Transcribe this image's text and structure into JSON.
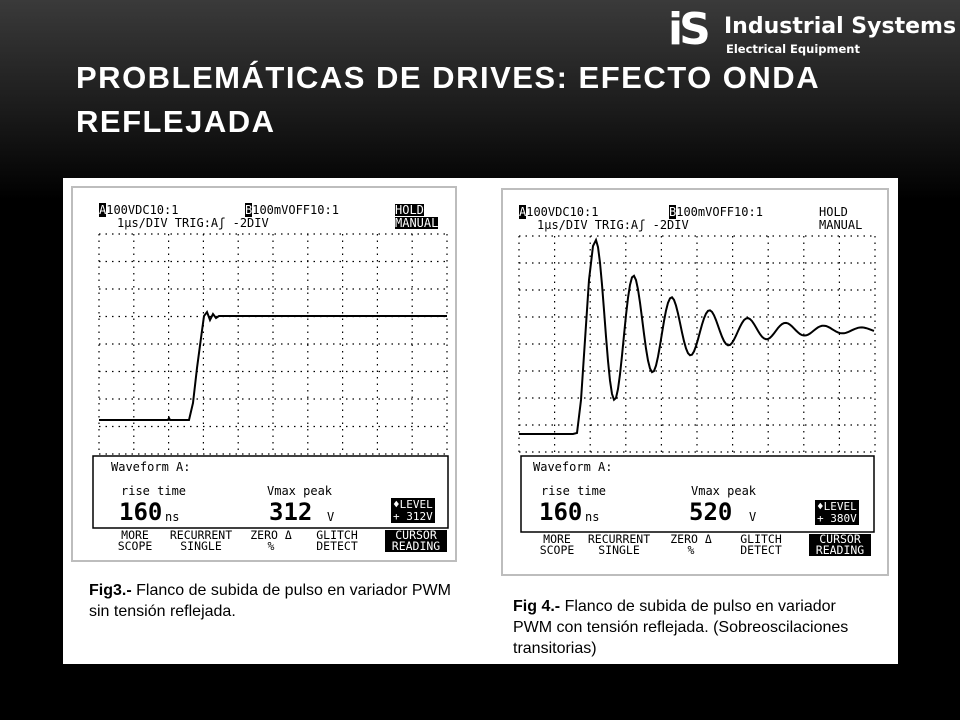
{
  "logo": {
    "mark": "iS",
    "title": "Industrial Systems",
    "subtitle": "Electrical Equipment"
  },
  "slide_title": "PROBLEMÁTICAS DE DRIVES: EFECTO ONDA REFLEJADA",
  "scopes": [
    {
      "ch_a": "100VDC10:1",
      "ch_b": "100mVOFF10:1",
      "hold": "HOLD",
      "manual": "MANUAL",
      "timebase": "1μs/DIV TRIG:Aʃ -2DIV",
      "waveform_label": "Waveform A:",
      "rise_label": "rise time",
      "vmax_label": "Vmax peak",
      "rise_value": "160",
      "rise_unit": "ns",
      "vmax_value": "312",
      "vmax_unit": "V",
      "level_line1": "♦LEVEL",
      "level_line2": "+ 312V",
      "menu": [
        "MORE\nSCOPE",
        "RECURRENT\nSINGLE",
        "ZERO Δ\n%",
        "GLITCH\nDETECT",
        "CURSOR\nREADING"
      ],
      "caption_label": "Fig3.-",
      "caption_text": "Flanco de subida de pulso en variador PWM sin tensión reflejada."
    },
    {
      "ch_a": "100VDC10:1",
      "ch_b": "100mVOFF10:1",
      "hold": "HOLD",
      "manual": "MANUAL",
      "timebase": "1μs/DIV TRIG:Aʃ -2DIV",
      "waveform_label": "Waveform A:",
      "rise_label": "rise time",
      "vmax_label": "Vmax peak",
      "rise_value": "160",
      "rise_unit": "ns",
      "vmax_value": "520",
      "vmax_unit": "V",
      "level_line1": "♦LEVEL",
      "level_line2": "+ 380V",
      "menu": [
        "MORE\nSCOPE",
        "RECURRENT\nSINGLE",
        "ZERO Δ\n%",
        "GLITCH\nDETECT",
        "CURSOR\nREADING"
      ],
      "caption_label": "Fig 4.-",
      "caption_text": "Flanco de subida de pulso en variador PWM con tensión reflejada. (Sobreoscilaciones transitorias)"
    }
  ],
  "colors": {
    "background": "#000000",
    "title": "#ffffff",
    "panel": "#ffffff",
    "frame": "#bdbdbd"
  }
}
